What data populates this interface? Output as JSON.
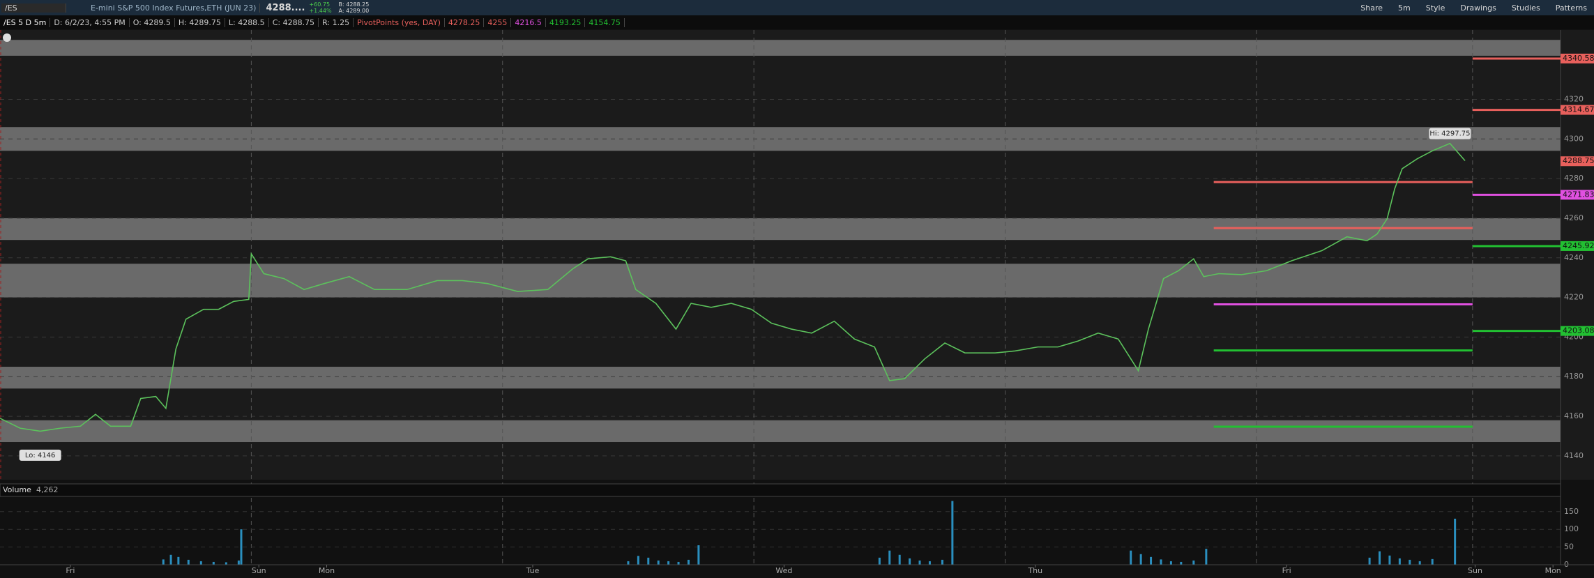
{
  "toolbar": {
    "symbol": "/ES",
    "description": "E-mini S&P 500 Index Futures,ETH (JUN 23)",
    "last": "4288....",
    "change": "+60.75",
    "change_pct": "+1.44%",
    "bid": "B: 4288.25",
    "ask": "A: 4289.00",
    "buttons": [
      "Share",
      "5m",
      "Style",
      "Drawings",
      "Studies",
      "Patterns"
    ]
  },
  "info_bar": {
    "chart": "/ES 5 D 5m",
    "items": [
      "D: 6/2/23, 4:55 PM",
      "O: 4289.5",
      "H: 4289.75",
      "L: 4288.5",
      "C: 4288.75",
      "R: 1.25"
    ],
    "study": "PivotPoints (yes, DAY)"
  },
  "chart_data": [
    {
      "type": "line",
      "color": "#5cc25c",
      "x": [
        0,
        0.08,
        0.16,
        0.24,
        0.32,
        0.38,
        0.44,
        0.52,
        0.56,
        0.62,
        0.66,
        0.7,
        0.74,
        0.81,
        0.87,
        0.93,
        0.99,
        1.0,
        1.05,
        1.13,
        1.21,
        1.29,
        1.39,
        1.49,
        1.62,
        1.74,
        1.84,
        1.94,
        2.06,
        2.18,
        2.28,
        2.34,
        2.43,
        2.49,
        2.53,
        2.61,
        2.69,
        2.75,
        2.83,
        2.91,
        2.99,
        3.07,
        3.15,
        3.23,
        3.32,
        3.4,
        3.48,
        3.54,
        3.6,
        3.68,
        3.76,
        3.84,
        3.96,
        4.04,
        4.13,
        4.21,
        4.29,
        4.37,
        4.45,
        4.51,
        4.53,
        4.57,
        4.63,
        4.69,
        4.75,
        4.79,
        4.85,
        4.94,
        5.04,
        5.14,
        5.26,
        5.36,
        5.44,
        5.48,
        5.52,
        5.55,
        5.58,
        5.64,
        5.7,
        5.77,
        5.83
      ],
      "values": [
        4159,
        4154,
        4152.5,
        4154,
        4155,
        4161,
        4155,
        4155,
        4169,
        4170,
        4164,
        4194,
        4209,
        4214,
        4214,
        4218,
        4219,
        4242,
        4232,
        4229.5,
        4224,
        4227,
        4230.5,
        4224,
        4224,
        4228.5,
        4228.5,
        4227,
        4223,
        4224,
        4234.5,
        4239.5,
        4240.5,
        4238.5,
        4224,
        4217,
        4204,
        4217,
        4215,
        4217,
        4214,
        4207,
        4204,
        4202,
        4208,
        4199,
        4195,
        4178,
        4179,
        4189,
        4197,
        4192,
        4192,
        4193,
        4195,
        4195,
        4198,
        4202,
        4199,
        4187,
        4183,
        4204,
        4229.5,
        4233.5,
        4239.5,
        4230.5,
        4232,
        4231.5,
        4233.5,
        4238.5,
        4243.6,
        4250.6,
        4248.6,
        4252,
        4259.7,
        4274.8,
        4285,
        4290,
        4294,
        4297.75,
        4289
      ],
      "xlim": [
        0,
        6.21
      ],
      "ylim": [
        4128,
        4355
      ],
      "yticks": [
        4140,
        4160,
        4180,
        4200,
        4220,
        4240,
        4260,
        4280,
        4300,
        4320
      ],
      "xticks": [
        {
          "value": 0.28,
          "label": "Fri"
        },
        {
          "value": 1.03,
          "label": "Sun"
        },
        {
          "value": 1.3,
          "label": "Mon"
        },
        {
          "value": 2.12,
          "label": "Tue"
        },
        {
          "value": 3.12,
          "label": "Wed"
        },
        {
          "value": 4.12,
          "label": "Thu"
        },
        {
          "value": 5.12,
          "label": "Fri"
        },
        {
          "value": 5.87,
          "label": "Sun"
        },
        {
          "value": 6.18,
          "label": "Mon"
        }
      ],
      "session_lines": [
        1,
        2,
        3,
        4,
        5,
        5.86
      ],
      "grid": true,
      "zones": [
        [
          4342,
          4350
        ],
        [
          4294,
          4306
        ],
        [
          4249,
          4260
        ],
        [
          4220,
          4237
        ],
        [
          4174,
          4185
        ],
        [
          4147,
          4158
        ]
      ],
      "pivots": [
        {
          "value": 4278.25,
          "color": "#e8605c",
          "from": 4.83,
          "to": 5.86
        },
        {
          "value": 4255,
          "color": "#e8605c",
          "from": 4.83,
          "to": 5.86
        },
        {
          "value": 4216.5,
          "color": "#e050e0",
          "from": 4.83,
          "to": 5.86
        },
        {
          "value": 4193.25,
          "color": "#22c032",
          "from": 4.83,
          "to": 5.86
        },
        {
          "value": 4154.75,
          "color": "#22c032",
          "from": 4.83,
          "to": 5.86
        },
        {
          "value": 4340.58,
          "color": "#e8605c",
          "from": 5.86,
          "to": 6.21
        },
        {
          "value": 4314.67,
          "color": "#e8605c",
          "from": 5.86,
          "to": 6.21
        },
        {
          "value": 4271.83,
          "color": "#e050e0",
          "from": 5.86,
          "to": 6.21
        },
        {
          "value": 4245.92,
          "color": "#22c032",
          "from": 5.86,
          "to": 6.21
        },
        {
          "value": 4203.08,
          "color": "#22c032",
          "from": 5.86,
          "to": 6.21
        }
      ],
      "last_price": 4288.75,
      "annotations": [
        {
          "text": "Hi: 4297.75",
          "x": 5.77,
          "y": 4297.75
        },
        {
          "text": "Lo: 4146",
          "x": 0.16,
          "y": 4146
        }
      ]
    },
    {
      "type": "bar",
      "title": "Volume",
      "value_text": "4,262",
      "color": "#2a8fbf",
      "x": [
        0.65,
        0.68,
        0.71,
        0.75,
        0.8,
        0.85,
        0.9,
        0.95,
        0.96,
        2.5,
        2.54,
        2.58,
        2.62,
        2.66,
        2.7,
        2.74,
        2.78,
        3.5,
        3.54,
        3.58,
        3.62,
        3.66,
        3.7,
        3.75,
        3.79,
        4.5,
        4.54,
        4.58,
        4.62,
        4.66,
        4.7,
        4.75,
        4.8,
        5.45,
        5.49,
        5.53,
        5.57,
        5.61,
        5.65,
        5.7,
        5.79
      ],
      "values": [
        15,
        28,
        22,
        14,
        10,
        8,
        7,
        12,
        100,
        10,
        25,
        20,
        12,
        10,
        8,
        14,
        55,
        20,
        40,
        28,
        18,
        12,
        10,
        14,
        180,
        40,
        30,
        22,
        15,
        10,
        8,
        12,
        45,
        20,
        38,
        26,
        18,
        14,
        10,
        16,
        130
      ],
      "xlim": [
        0,
        6.21
      ],
      "ylim": [
        0,
        185
      ],
      "yticks": [
        0,
        50,
        100,
        150
      ]
    }
  ]
}
